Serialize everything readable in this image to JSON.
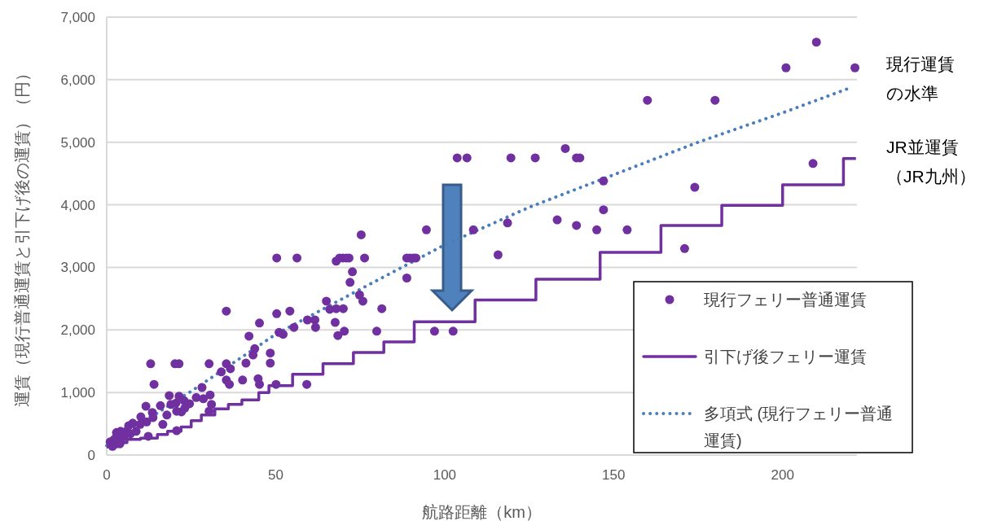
{
  "chart_data": {
    "type": "scatter",
    "xlabel": "航路距離（km）",
    "ylabel": "運賃（現行普通運賃と引下げ後の運賃）（円）",
    "xlim": [
      0,
      222
    ],
    "ylim": [
      0,
      7000
    ],
    "xticks": [
      0,
      50,
      100,
      150,
      200
    ],
    "yticks": [
      0,
      {
        "value": 1000,
        "label": "1,000"
      },
      {
        "value": 2000,
        "label": "2,000"
      },
      {
        "value": 3000,
        "label": "3,000"
      },
      {
        "value": 4000,
        "label": "4,000"
      },
      {
        "value": 5000,
        "label": "5,000"
      },
      {
        "value": 6000,
        "label": "6,000"
      },
      {
        "value": 7000,
        "label": "7,000"
      }
    ],
    "grid": "y",
    "legend": "bottom right",
    "annotations": [
      "現行運賃の水準",
      "JR並運賃（JR九州）"
    ],
    "series": [
      {
        "name": "現行フェリー普通運賃",
        "marker": "circle",
        "color": "#7030a0",
        "x": [
          1,
          1.7,
          2.2,
          2.9,
          2.9,
          3.9,
          4.1,
          5,
          5.8,
          6.5,
          7,
          7.7,
          8.7,
          9.9,
          10.1,
          11.6,
          11.8,
          12.3,
          13,
          13.5,
          13.7,
          14,
          15.9,
          16.6,
          17.8,
          18.5,
          19,
          20.2,
          20.5,
          20.7,
          20.7,
          21.4,
          21.4,
          22.1,
          22.9,
          23.1,
          24.5,
          26.5,
          28.2,
          28.6,
          30.3,
          30.3,
          30.6,
          31,
          33.9,
          35.4,
          35.4,
          35.4,
          36.3,
          36.6,
          40.2,
          41.2,
          42.1,
          43.3,
          43.8,
          44.8,
          45.2,
          45.2,
          48.4,
          48.4,
          50.1,
          50.3,
          50.3,
          51,
          52.2,
          54.2,
          55.4,
          56.3,
          59.2,
          59.4,
          61.6,
          61.8,
          65,
          66,
          67.6,
          67.9,
          67.9,
          68.4,
          68.9,
          69.9,
          70,
          70.3,
          70.9,
          71.7,
          72,
          72.7,
          74.8,
          75.3,
          75.8,
          76.3,
          79.9,
          81.4,
          88.8,
          88.8,
          89.7,
          90.7,
          91.5,
          94.6,
          97,
          102.5,
          103.7,
          106.6,
          108.5,
          115.8,
          118.6,
          119.6,
          126.8,
          133.3,
          135.7,
          139,
          139,
          140,
          145,
          147,
          147,
          154,
          160,
          171,
          174,
          180,
          201,
          209,
          210,
          221.4
        ],
        "values": [
          210,
          140,
          250,
          360,
          290,
          180,
          380,
          290,
          380,
          470,
          340,
          510,
          380,
          490,
          610,
          780,
          530,
          300,
          1460,
          680,
          600,
          1130,
          790,
          490,
          640,
          950,
          810,
          1460,
          830,
          700,
          390,
          1460,
          940,
          690,
          870,
          750,
          820,
          920,
          1080,
          900,
          1460,
          700,
          960,
          810,
          1330,
          2300,
          1460,
          1200,
          1130,
          1380,
          1200,
          1470,
          1900,
          1600,
          1700,
          1220,
          1130,
          2110,
          1630,
          1470,
          1130,
          3150,
          2260,
          1960,
          1930,
          2300,
          2040,
          3150,
          1130,
          2160,
          2160,
          2040,
          2460,
          2330,
          2120,
          3100,
          2340,
          1910,
          3150,
          3150,
          2340,
          1980,
          3150,
          3150,
          2760,
          2930,
          2560,
          3520,
          2460,
          3150,
          1980,
          2340,
          3150,
          2830,
          3150,
          3150,
          3150,
          3600,
          1980,
          1980,
          4750,
          4750,
          3600,
          3200,
          3710,
          4750,
          4750,
          3760,
          4900,
          3670,
          4750,
          4750,
          3600,
          3920,
          4380,
          3600,
          5670,
          3300,
          4280,
          5670,
          6190,
          4660,
          6600,
          6190
        ]
      },
      {
        "name": "引下げ後フェリー運賃",
        "type": "step",
        "color": "#7030a0",
        "x": [
          0,
          3,
          6,
          10,
          15,
          18,
          22,
          25,
          28,
          32,
          36,
          40,
          45,
          48,
          55,
          64,
          73,
          82,
          91,
          109,
          127,
          146,
          164,
          182,
          200,
          218,
          221.7
        ],
        "values": [
          130,
          200,
          250,
          270,
          330,
          380,
          450,
          550,
          640,
          740,
          810,
          880,
          1000,
          1110,
          1290,
          1460,
          1640,
          1810,
          2130,
          2480,
          2810,
          3240,
          3670,
          3990,
          4320,
          4740,
          4740
        ]
      },
      {
        "name": "多項式 (現行フェリー普通運賃)",
        "type": "line",
        "line_style": "dotted",
        "color": "#4a7ebb",
        "x": [
          0,
          25,
          50,
          75,
          100,
          125,
          150,
          175,
          200,
          220
        ],
        "values": [
          150,
          1020,
          1930,
          2650,
          3360,
          3960,
          4480,
          5000,
          5470,
          5870
        ]
      }
    ]
  }
}
